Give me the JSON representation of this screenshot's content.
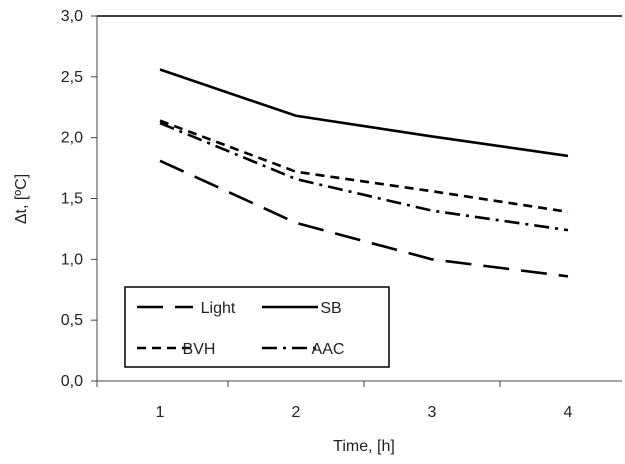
{
  "chart_data": {
    "type": "line",
    "title": "",
    "xlabel": "Time, [h]",
    "ylabel": "Δt, [ºC]",
    "x": [
      1,
      2,
      3,
      4
    ],
    "x_tick_labels": [
      "1",
      "2",
      "3",
      "4"
    ],
    "ylim": [
      0,
      3
    ],
    "y_ticks": [
      0,
      0.5,
      1,
      1.5,
      2,
      2.5,
      3
    ],
    "y_tick_labels": [
      "0,0",
      "0,5",
      "1,0",
      "1,5",
      "2,0",
      "2,5",
      "3,0"
    ],
    "grid": "horizontal line at top only",
    "legend_position": "bottom-left",
    "series": [
      {
        "name": "Light",
        "style": "long-dash",
        "color": "#000000",
        "values": [
          1.81,
          1.3,
          1.0,
          0.86
        ]
      },
      {
        "name": "SB",
        "style": "solid",
        "color": "#000000",
        "values": [
          2.56,
          2.18,
          2.01,
          1.85
        ]
      },
      {
        "name": "BVH",
        "style": "short-dash",
        "color": "#000000",
        "values": [
          2.14,
          1.72,
          1.56,
          1.39
        ]
      },
      {
        "name": "AAC",
        "style": "dash-dot",
        "color": "#000000",
        "values": [
          2.12,
          1.66,
          1.4,
          1.24
        ]
      }
    ]
  }
}
